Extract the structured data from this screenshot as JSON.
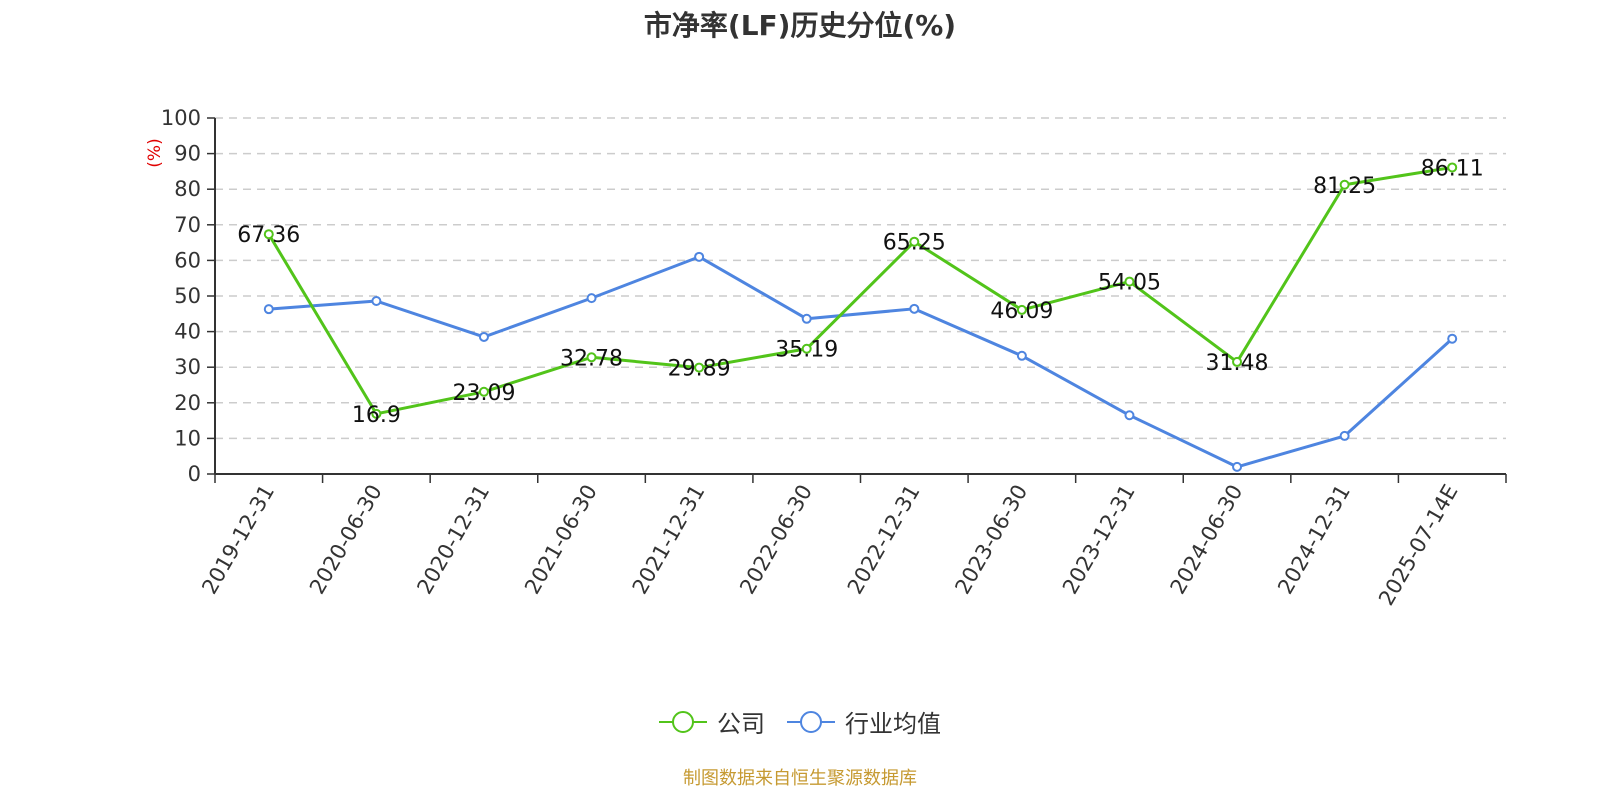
{
  "title": "市净率(LF)历史分位(%)",
  "y_axis_unit": "(%)",
  "source_note": "制图数据来自恒生聚源数据库",
  "legend": [
    {
      "label": "公司",
      "color": "#52c41a"
    },
    {
      "label": "行业均值",
      "color": "#4e85e0"
    }
  ],
  "chart_data": {
    "type": "line",
    "title": "市净率(LF)历史分位(%)",
    "xlabel": "",
    "ylabel": "(%)",
    "ylim": [
      0,
      100
    ],
    "yticks": [
      0,
      10,
      20,
      30,
      40,
      50,
      60,
      70,
      80,
      90,
      100
    ],
    "grid": true,
    "legend_position": "bottom",
    "categories": [
      "2019-12-31",
      "2020-06-30",
      "2020-12-31",
      "2021-06-30",
      "2021-12-31",
      "2022-06-30",
      "2022-12-31",
      "2023-06-30",
      "2023-12-31",
      "2024-06-30",
      "2024-12-31",
      "2025-07-14E"
    ],
    "series": [
      {
        "name": "公司",
        "color": "#52c41a",
        "labeled": true,
        "values": [
          67.36,
          16.9,
          23.09,
          32.78,
          29.89,
          35.19,
          65.25,
          46.09,
          54.05,
          31.48,
          81.25,
          86.11
        ]
      },
      {
        "name": "行业均值",
        "color": "#4e85e0",
        "labeled": false,
        "values": [
          46.3,
          48.6,
          38.5,
          49.4,
          61.0,
          43.6,
          46.4,
          33.2,
          16.5,
          2.0,
          10.7,
          38.0
        ]
      }
    ]
  }
}
